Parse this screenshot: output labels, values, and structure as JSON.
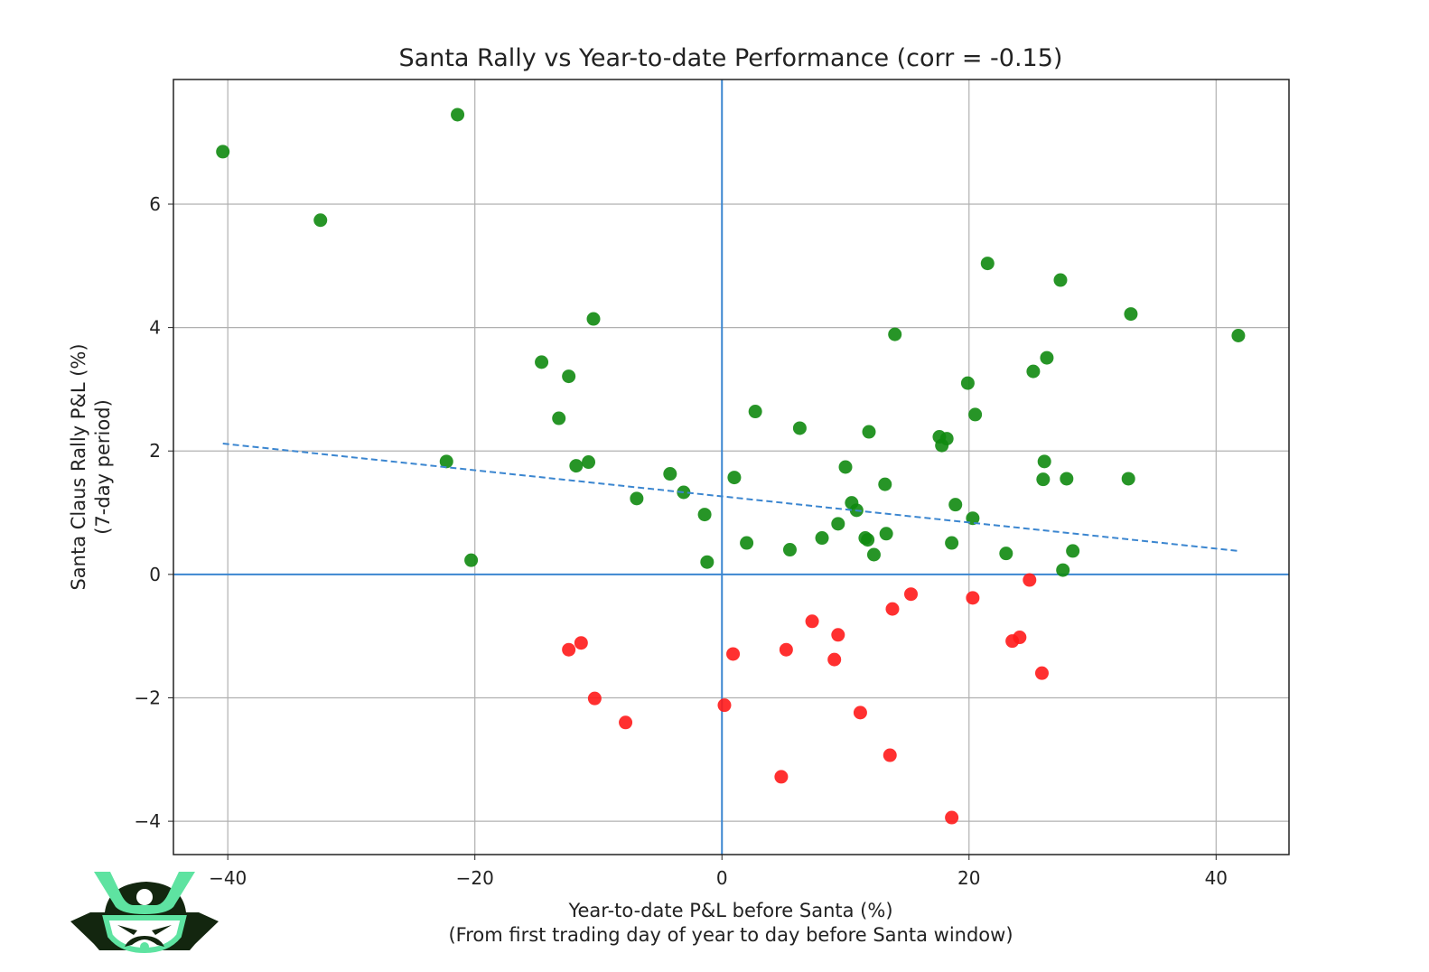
{
  "chart_data": {
    "type": "scatter",
    "title": "Santa Rally vs Year-to-date Performance (corr = -0.15)",
    "xlabel": "Year-to-date P&L before Santa (%)",
    "xlabel2": "(From first trading day of year to day before Santa window)",
    "ylabel": "Santa Claus Rally P&L (%)",
    "ylabel2": "(7-day period)",
    "xlim": [
      -44.4,
      45.9
    ],
    "ylim": [
      -4.54,
      8.02
    ],
    "xticks": [
      -40,
      -20,
      0,
      20,
      40
    ],
    "yticks": [
      -4,
      -2,
      0,
      2,
      4,
      6
    ],
    "xtick_labels": [
      "−40",
      "−20",
      "0",
      "20",
      "40"
    ],
    "ytick_labels": [
      "−4",
      "−2",
      "0",
      "2",
      "4",
      "6"
    ],
    "grid": true,
    "colors": {
      "positive": "#108a10",
      "negative": "#ff1a1a",
      "zero_lines": "#3b86d0",
      "trend": "#3b86d0"
    },
    "series": [
      {
        "values_sign": "positive",
        "points": [
          [
            -40.4,
            6.85
          ],
          [
            -21.4,
            7.45
          ],
          [
            -32.5,
            5.74
          ],
          [
            -10.4,
            4.14
          ],
          [
            -14.6,
            3.44
          ],
          [
            -12.4,
            3.21
          ],
          [
            -13.2,
            2.53
          ],
          [
            -22.3,
            1.83
          ],
          [
            -11.8,
            1.76
          ],
          [
            -10.8,
            1.82
          ],
          [
            -20.3,
            0.23
          ],
          [
            -6.9,
            1.23
          ],
          [
            -4.2,
            1.63
          ],
          [
            -3.1,
            1.33
          ],
          [
            -1.4,
            0.97
          ],
          [
            -1.2,
            0.2
          ],
          [
            1.0,
            1.57
          ],
          [
            2.7,
            2.64
          ],
          [
            2.0,
            0.51
          ],
          [
            5.5,
            0.4
          ],
          [
            6.3,
            2.37
          ],
          [
            8.1,
            0.59
          ],
          [
            9.4,
            0.82
          ],
          [
            10.0,
            1.74
          ],
          [
            10.5,
            1.16
          ],
          [
            10.9,
            1.04
          ],
          [
            11.6,
            0.59
          ],
          [
            11.8,
            0.56
          ],
          [
            12.3,
            0.32
          ],
          [
            11.9,
            2.31
          ],
          [
            13.2,
            1.46
          ],
          [
            13.3,
            0.66
          ],
          [
            14.0,
            3.89
          ],
          [
            17.6,
            2.23
          ],
          [
            17.8,
            2.09
          ],
          [
            18.2,
            2.2
          ],
          [
            18.6,
            0.51
          ],
          [
            18.9,
            1.13
          ],
          [
            19.9,
            3.1
          ],
          [
            20.3,
            0.91
          ],
          [
            20.5,
            2.59
          ],
          [
            21.5,
            5.04
          ],
          [
            23.0,
            0.34
          ],
          [
            25.2,
            3.29
          ],
          [
            26.0,
            1.54
          ],
          [
            26.1,
            1.83
          ],
          [
            26.3,
            3.51
          ],
          [
            27.4,
            4.77
          ],
          [
            27.6,
            0.07
          ],
          [
            27.9,
            1.55
          ],
          [
            28.4,
            0.38
          ],
          [
            32.9,
            1.55
          ],
          [
            33.1,
            4.22
          ],
          [
            41.8,
            3.87
          ]
        ]
      },
      {
        "values_sign": "negative",
        "points": [
          [
            -12.4,
            -1.22
          ],
          [
            -11.4,
            -1.11
          ],
          [
            -10.3,
            -2.01
          ],
          [
            -7.8,
            -2.4
          ],
          [
            0.2,
            -2.12
          ],
          [
            0.9,
            -1.29
          ],
          [
            4.8,
            -3.28
          ],
          [
            5.2,
            -1.22
          ],
          [
            7.3,
            -0.76
          ],
          [
            9.1,
            -1.38
          ],
          [
            9.4,
            -0.98
          ],
          [
            11.2,
            -2.24
          ],
          [
            13.6,
            -2.93
          ],
          [
            13.8,
            -0.56
          ],
          [
            15.3,
            -0.32
          ],
          [
            18.6,
            -3.94
          ],
          [
            20.3,
            -0.38
          ],
          [
            23.5,
            -1.08
          ],
          [
            24.1,
            -1.02
          ],
          [
            24.9,
            -0.09
          ],
          [
            25.9,
            -1.6
          ]
        ]
      }
    ],
    "trendline": {
      "style": "dashed",
      "points": [
        [
          -40.4,
          2.12
        ],
        [
          41.8,
          0.38
        ]
      ]
    }
  },
  "logo": {
    "name": "samurai-helmet-logo",
    "colors": [
      "#13260f",
      "#5ee3a1"
    ]
  }
}
